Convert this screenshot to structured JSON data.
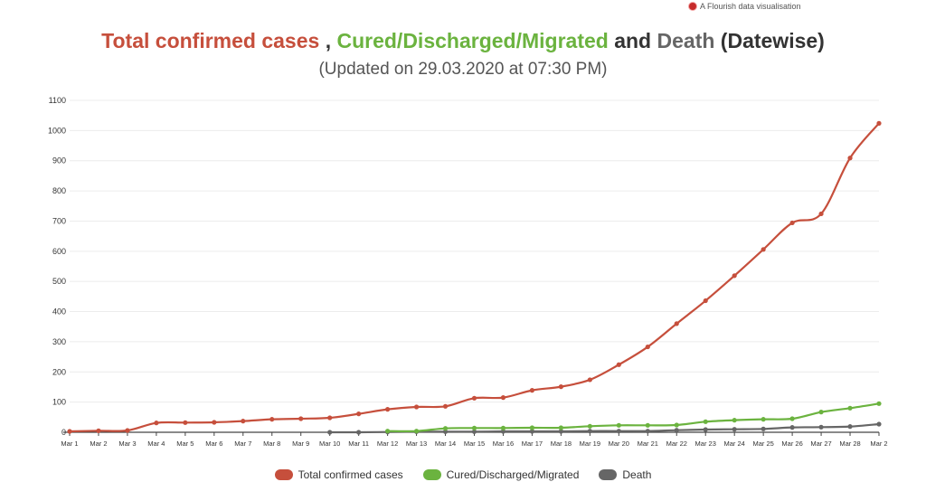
{
  "credit": "A Flourish data visualisation",
  "title_parts": [
    {
      "text": "Total confirmed cases",
      "color": "#c64f3c"
    },
    {
      "text": " , ",
      "color": "#333333"
    },
    {
      "text": "Cured/Discharged/Migrated",
      "color": "#6bb33f"
    },
    {
      "text": " and ",
      "color": "#333333"
    },
    {
      "text": "Death",
      "color": "#666666"
    },
    {
      "text": " (Datewise)",
      "color": "#333333"
    }
  ],
  "subtitle": "(Updated on 29.03.2020 at 07:30 PM)",
  "chart_data": {
    "type": "line",
    "x": [
      "Mar 1",
      "Mar 2",
      "Mar 3",
      "Mar 4",
      "Mar 5",
      "Mar 6",
      "Mar 7",
      "Mar 8",
      "Mar 9",
      "Mar 10",
      "Mar 11",
      "Mar 12",
      "Mar 13",
      "Mar 14",
      "Mar 15",
      "Mar 16",
      "Mar 17",
      "Mar 18",
      "Mar 19",
      "Mar 20",
      "Mar 21",
      "Mar 22",
      "Mar 23",
      "Mar 24",
      "Mar 25",
      "Mar 26",
      "Mar 27",
      "Mar 28",
      "Mar 2"
    ],
    "yticks": [
      0,
      100,
      200,
      300,
      400,
      500,
      600,
      700,
      800,
      900,
      1000,
      1100
    ],
    "ylim": [
      0,
      1100
    ],
    "grid": true,
    "legend_position": "bottom",
    "series": [
      {
        "name": "Total confirmed cases",
        "color": "#c64f3c",
        "values": [
          3,
          5,
          6,
          31,
          32,
          33,
          37,
          43,
          45,
          48,
          61,
          76,
          84,
          86,
          113,
          115,
          139,
          151,
          174,
          224,
          283,
          360,
          436,
          519,
          606,
          694,
          724,
          909,
          1024
        ]
      },
      {
        "name": "Cured/Discharged/Migrated",
        "color": "#6bb33f",
        "values": [
          null,
          null,
          null,
          null,
          null,
          null,
          null,
          null,
          null,
          null,
          null,
          4,
          4,
          13,
          14,
          14,
          15,
          15,
          20,
          23,
          23,
          24,
          35,
          40,
          43,
          45,
          67,
          80,
          95
        ]
      },
      {
        "name": "Death",
        "color": "#666666",
        "values": [
          null,
          null,
          null,
          null,
          null,
          null,
          null,
          null,
          null,
          0,
          0,
          1,
          2,
          2,
          2,
          3,
          3,
          3,
          4,
          4,
          4,
          7,
          9,
          10,
          11,
          16,
          17,
          19,
          27
        ]
      }
    ]
  }
}
